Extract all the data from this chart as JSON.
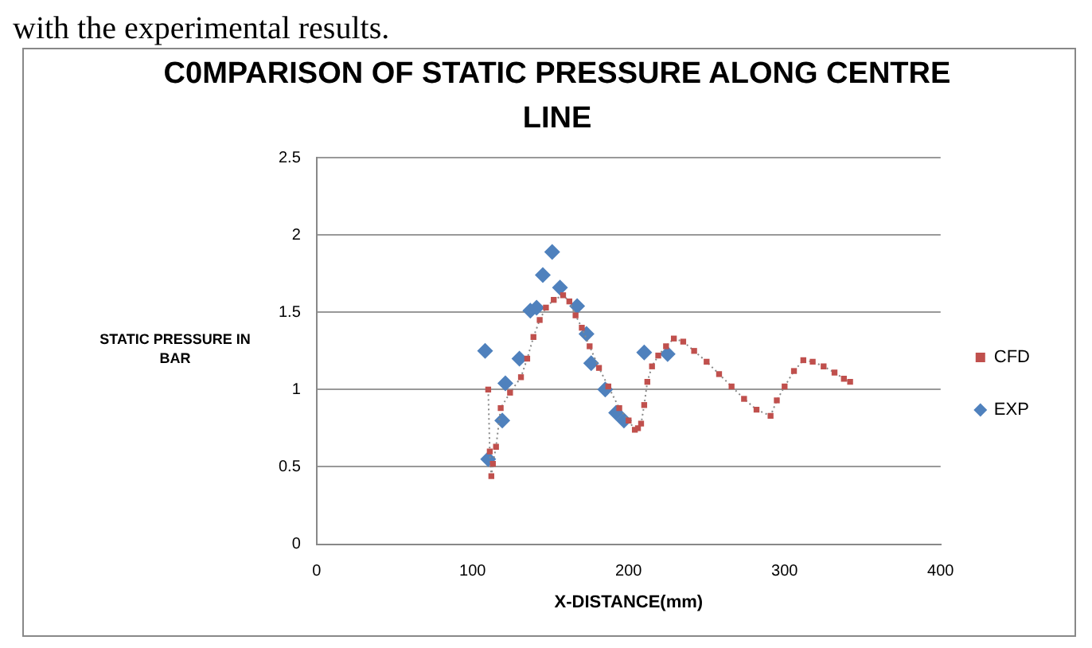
{
  "chart_data": {
    "type": "scatter",
    "title": "C0MPARISON OF STATIC PRESSURE ALONG CENTRE LINE",
    "xlabel": "X-DISTANCE(mm)",
    "ylabel": "STATIC PRESSURE  IN BAR",
    "annotations": [
      "with the experimental results."
    ],
    "xlim": [
      0,
      400
    ],
    "xticks": [
      0,
      100,
      200,
      300,
      400
    ],
    "ylim": [
      0,
      2.5
    ],
    "yticks": [
      0,
      0.5,
      1,
      1.5,
      2,
      2.5
    ],
    "grid": "y",
    "legend": "right",
    "series": [
      {
        "name": "EXP",
        "color": "#4f81bd",
        "marker": "diamond",
        "x": [
          108,
          110,
          119,
          121,
          130,
          137,
          141,
          145,
          151,
          156,
          167,
          173,
          176,
          185,
          192,
          197,
          210,
          225
        ],
        "values": [
          1.25,
          0.55,
          0.8,
          1.04,
          1.2,
          1.51,
          1.53,
          1.74,
          1.89,
          1.66,
          1.54,
          1.36,
          1.17,
          1.0,
          0.85,
          0.8,
          1.24,
          1.23
        ]
      },
      {
        "name": "CFD",
        "type": "line",
        "color": "#c0504d",
        "marker": "square",
        "line_style": "dotted",
        "x": [
          110,
          111,
          112,
          113,
          115,
          118,
          124,
          131,
          135,
          139,
          143,
          147,
          152,
          158,
          162,
          166,
          170,
          175,
          181,
          187,
          194,
          200,
          204,
          206,
          208,
          210,
          212,
          215,
          219,
          224,
          229,
          235,
          242,
          250,
          258,
          266,
          274,
          282,
          291,
          295,
          300,
          306,
          312,
          318,
          325,
          332,
          338,
          342
        ],
        "values": [
          1.0,
          0.6,
          0.44,
          0.52,
          0.63,
          0.88,
          0.98,
          1.08,
          1.2,
          1.34,
          1.45,
          1.53,
          1.58,
          1.61,
          1.57,
          1.48,
          1.4,
          1.28,
          1.14,
          1.02,
          0.88,
          0.8,
          0.74,
          0.75,
          0.78,
          0.9,
          1.05,
          1.15,
          1.22,
          1.28,
          1.33,
          1.31,
          1.25,
          1.18,
          1.1,
          1.02,
          0.94,
          0.87,
          0.83,
          0.93,
          1.02,
          1.12,
          1.19,
          1.18,
          1.15,
          1.11,
          1.07,
          1.05
        ]
      }
    ]
  }
}
